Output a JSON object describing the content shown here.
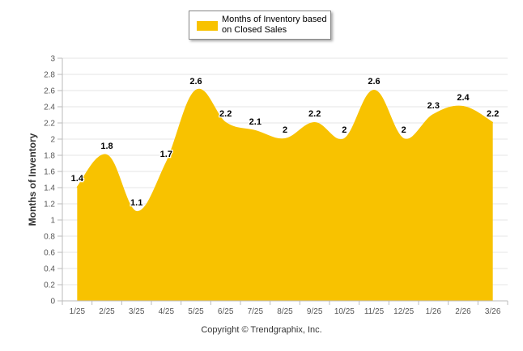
{
  "chart_data": {
    "type": "area",
    "title": "",
    "xlabel": "",
    "ylabel": "Months of Inventory",
    "ylim": [
      0,
      3
    ],
    "ytick_step": 0.2,
    "yticks": [
      "0",
      "0.2",
      "0.4",
      "0.6",
      "0.8",
      "1",
      "1.2",
      "1.4",
      "1.6",
      "1.8",
      "2",
      "2.2",
      "2.4",
      "2.6",
      "2.8",
      "3"
    ],
    "categories": [
      "1/25",
      "2/25",
      "3/25",
      "4/25",
      "5/25",
      "6/25",
      "7/25",
      "8/25",
      "9/25",
      "10/25",
      "11/25",
      "12/25",
      "1/26",
      "2/26",
      "3/26"
    ],
    "series": [
      {
        "name": "Months of Inventory based on Closed Sales",
        "values": [
          1.4,
          1.8,
          1.1,
          1.7,
          2.6,
          2.2,
          2.1,
          2,
          2.2,
          2,
          2.6,
          2,
          2.3,
          2.4,
          2.2
        ],
        "data_labels": [
          "1.4",
          "1.8",
          "1.1",
          "1.7",
          "2.6",
          "2.2",
          "2.1",
          "2",
          "2.2",
          "2",
          "2.6",
          "2",
          "2.3",
          "2.4",
          "2.2"
        ]
      }
    ],
    "legend": "top-center",
    "grid": true
  },
  "legend": {
    "label": "Months of Inventory based on Closed Sales"
  },
  "footer": {
    "copyright": "Copyright © Trendgraphix, Inc."
  },
  "colors": {
    "series_fill": "#F8C200",
    "grid": "#e6e6e6",
    "axis": "#bbbbbb",
    "text": "#333333"
  }
}
